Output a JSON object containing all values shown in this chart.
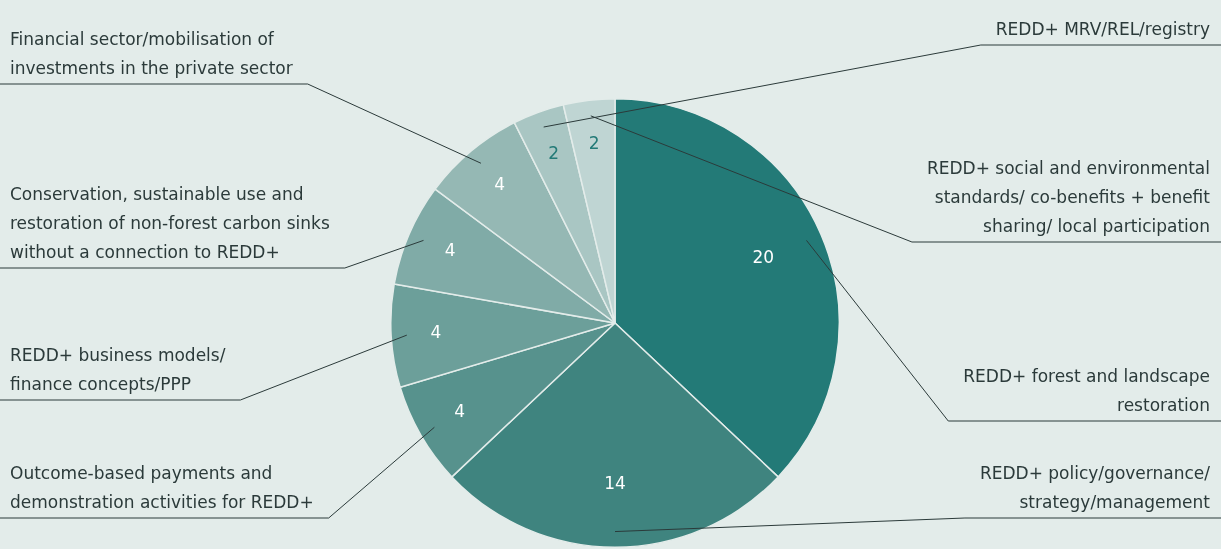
{
  "chart_data": {
    "type": "pie",
    "categories": [
      "REDD+ forest and landscape restoration",
      "REDD+ policy/governance/ strategy/management",
      "Outcome-based payments and demonstration activities for REDD+",
      "REDD+ business models/ finance concepts/PPP",
      "Conservation, sustainable use and restoration of non-forest carbon sinks without a connection to REDD+",
      "Financial sector/mobilisation of investments in the private sector",
      "REDD+ MRV/REL/registry",
      "REDD+ social and environmental standards/ co-benefits + benefit sharing/ local participation"
    ],
    "values": [
      20,
      14,
      4,
      4,
      4,
      4,
      2,
      2
    ],
    "colors": [
      "#237a77",
      "#3f847f",
      "#57928d",
      "#6c9f9a",
      "#80aba7",
      "#95b8b4",
      "#a9c6c3",
      "#bfd5d3"
    ],
    "data_labels": true,
    "legend": false
  }
}
